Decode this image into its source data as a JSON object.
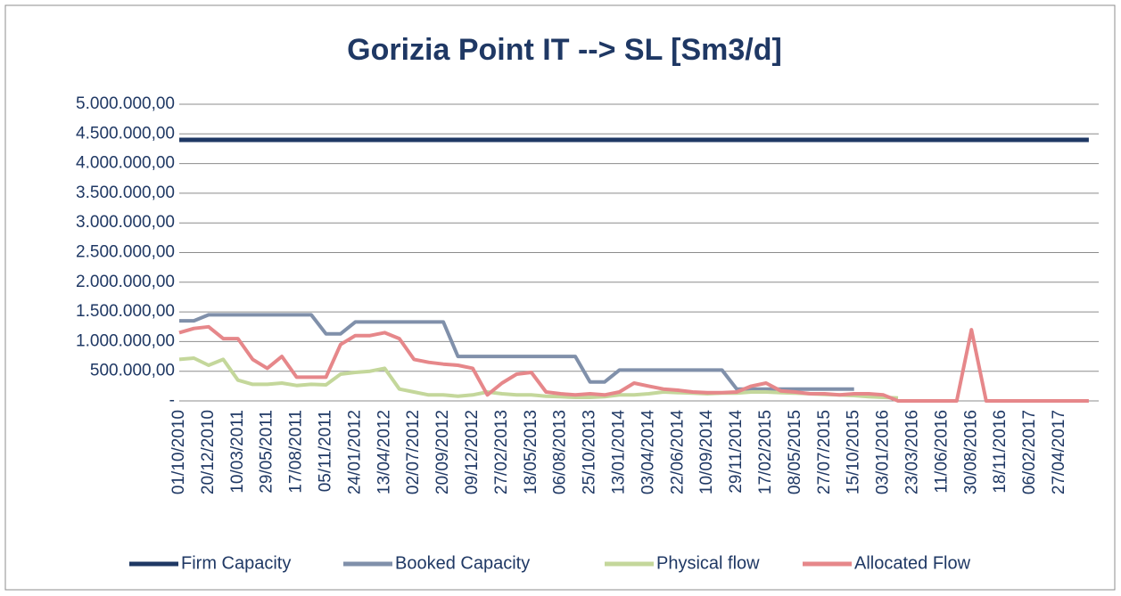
{
  "chart_data": {
    "type": "line",
    "title": "Gorizia Point  IT --> SL [Sm3/d]",
    "categories": [
      "01/10/2010",
      null,
      "20/12/2010",
      null,
      "10/03/2011",
      null,
      "29/05/2011",
      null,
      "17/08/2011",
      null,
      "05/11/2011",
      null,
      "24/01/2012",
      null,
      "13/04/2012",
      null,
      "02/07/2012",
      null,
      "20/09/2012",
      null,
      "09/12/2012",
      null,
      "27/02/2013",
      null,
      "18/05/2013",
      null,
      "06/08/2013",
      null,
      "25/10/2013",
      null,
      "13/01/2014",
      null,
      "03/04/2014",
      null,
      "22/06/2014",
      null,
      "10/09/2014",
      null,
      "29/11/2014",
      null,
      "17/02/2015",
      null,
      "08/05/2015",
      null,
      "27/07/2015",
      null,
      "15/10/2015",
      null,
      "03/01/2016",
      null,
      "23/03/2016",
      null,
      "11/06/2016",
      null,
      "30/08/2016",
      null,
      "18/11/2016",
      null,
      "06/02/2017",
      null,
      "27/04/2017",
      null,
      null
    ],
    "series": [
      {
        "name": "Firm Capacity",
        "color": "#1f3864",
        "values": [
          4400000,
          4400000,
          4400000,
          4400000,
          4400000,
          4400000,
          4400000,
          4400000,
          4400000,
          4400000,
          4400000,
          4400000,
          4400000,
          4400000,
          4400000,
          4400000,
          4400000,
          4400000,
          4400000,
          4400000,
          4400000,
          4400000,
          4400000,
          4400000,
          4400000,
          4400000,
          4400000,
          4400000,
          4400000,
          4400000,
          4400000,
          4400000,
          4400000,
          4400000,
          4400000,
          4400000,
          4400000,
          4400000,
          4400000,
          4400000,
          4400000,
          4400000,
          4400000,
          4400000,
          4400000,
          4400000,
          4400000,
          4400000,
          4400000,
          4400000,
          4400000,
          4400000,
          4400000,
          4400000,
          4400000,
          4400000,
          4400000,
          4400000,
          4400000,
          4400000,
          4400000,
          4400000,
          4400000
        ]
      },
      {
        "name": "Booked Capacity",
        "color": "#8090aa",
        "values": [
          1350000,
          1350000,
          1450000,
          1450000,
          1450000,
          1450000,
          1450000,
          1450000,
          1450000,
          1450000,
          1130000,
          1130000,
          1330000,
          1330000,
          1330000,
          1330000,
          1330000,
          1330000,
          1330000,
          750000,
          750000,
          750000,
          750000,
          750000,
          750000,
          750000,
          750000,
          750000,
          320000,
          320000,
          520000,
          520000,
          520000,
          520000,
          520000,
          520000,
          520000,
          520000,
          200000,
          200000,
          200000,
          200000,
          200000,
          200000,
          200000,
          200000,
          200000,
          null,
          null,
          null,
          null,
          null,
          null,
          null,
          null,
          null,
          null,
          null,
          null,
          null,
          null,
          null,
          null
        ]
      },
      {
        "name": "Physical flow",
        "color": "#c4d79b",
        "values": [
          700000,
          720000,
          600000,
          700000,
          350000,
          280000,
          280000,
          300000,
          260000,
          280000,
          270000,
          450000,
          480000,
          500000,
          550000,
          200000,
          150000,
          100000,
          100000,
          80000,
          100000,
          150000,
          120000,
          100000,
          100000,
          80000,
          70000,
          60000,
          60000,
          70000,
          100000,
          100000,
          120000,
          150000,
          140000,
          130000,
          120000,
          130000,
          130000,
          150000,
          150000,
          140000,
          130000,
          120000,
          110000,
          100000,
          90000,
          70000,
          60000,
          50000,
          null,
          null,
          null,
          null,
          null,
          null,
          null,
          null,
          null,
          null,
          null,
          null,
          null
        ]
      },
      {
        "name": "Allocated Flow",
        "color": "#e6878a",
        "values": [
          1150000,
          1220000,
          1250000,
          1050000,
          1050000,
          700000,
          550000,
          750000,
          400000,
          400000,
          400000,
          950000,
          1100000,
          1100000,
          1150000,
          1050000,
          700000,
          650000,
          620000,
          600000,
          550000,
          100000,
          300000,
          450000,
          480000,
          150000,
          120000,
          100000,
          120000,
          100000,
          150000,
          300000,
          250000,
          200000,
          180000,
          150000,
          140000,
          140000,
          150000,
          250000,
          300000,
          170000,
          150000,
          120000,
          120000,
          100000,
          120000,
          120000,
          100000,
          0,
          0,
          0,
          0,
          0,
          1200000,
          0,
          0,
          0,
          0,
          0,
          0,
          0,
          0
        ]
      }
    ],
    "ylim": [
      0,
      5000000
    ],
    "yticks": [
      {
        "value": 0,
        "label": "-"
      },
      {
        "value": 500000,
        "label": "500.000,00"
      },
      {
        "value": 1000000,
        "label": "1.000.000,00"
      },
      {
        "value": 1500000,
        "label": "1.500.000,00"
      },
      {
        "value": 2000000,
        "label": "2.000.000,00"
      },
      {
        "value": 2500000,
        "label": "2.500.000,00"
      },
      {
        "value": 3000000,
        "label": "3.000.000,00"
      },
      {
        "value": 3500000,
        "label": "3.500.000,00"
      },
      {
        "value": 4000000,
        "label": "4.000.000,00"
      },
      {
        "value": 4500000,
        "label": "4.500.000,00"
      },
      {
        "value": 5000000,
        "label": "5.000.000,00"
      }
    ],
    "grid": true,
    "legend": "bottom"
  }
}
